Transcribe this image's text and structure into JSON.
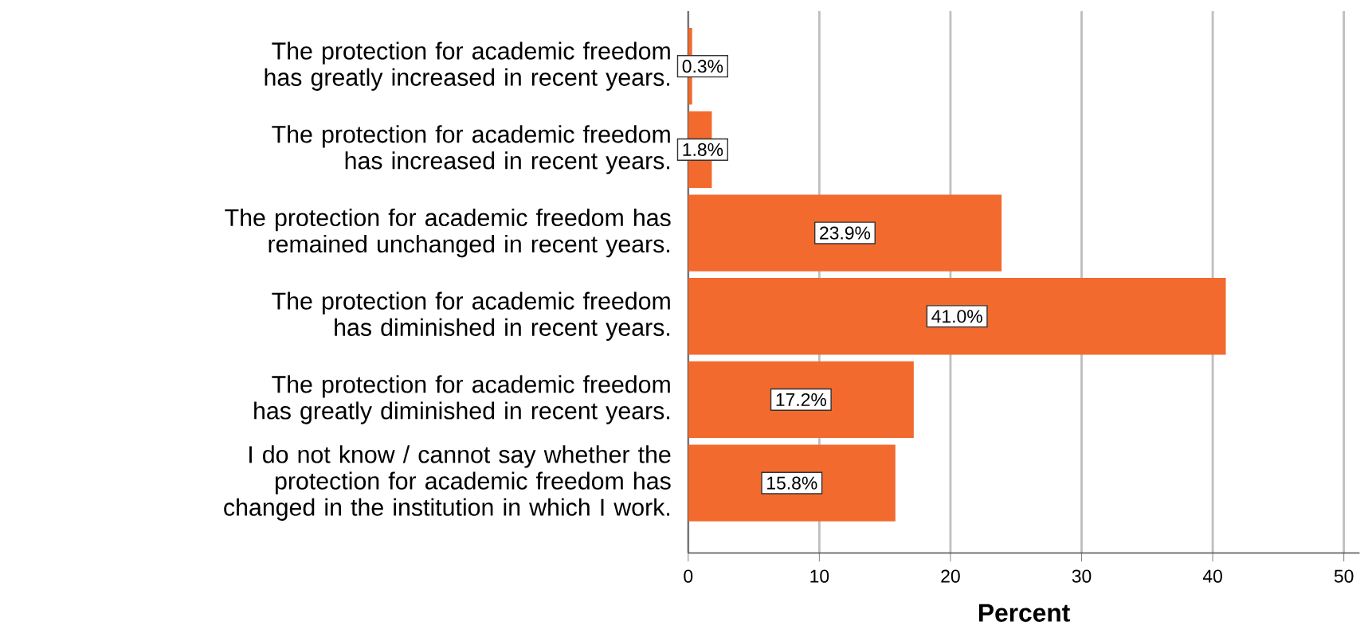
{
  "chart_data": {
    "type": "bar",
    "orientation": "horizontal",
    "xlabel": "Percent",
    "categories": [
      "The protection for academic freedom has greatly increased in recent years.",
      "The protection for academic freedom has increased in recent years.",
      "The protection for academic freedom has remained unchanged in recent years.",
      "The protection for academic freedom has diminished in recent years.",
      "The protection for academic freedom has greatly diminished in recent years.",
      "I do not know / cannot say whether the protection for academic freedom has changed in the institution in which I work."
    ],
    "values": [
      0.3,
      1.8,
      23.9,
      41.0,
      17.2,
      15.8
    ],
    "value_labels": [
      "0.3%",
      "1.8%",
      "23.9%",
      "41.0%",
      "17.2%",
      "15.8%"
    ],
    "color": "#f26a2e",
    "xlim": [
      0,
      51.2
    ],
    "xticks": [
      0,
      10,
      20,
      30,
      40,
      50
    ],
    "grid": "x"
  }
}
